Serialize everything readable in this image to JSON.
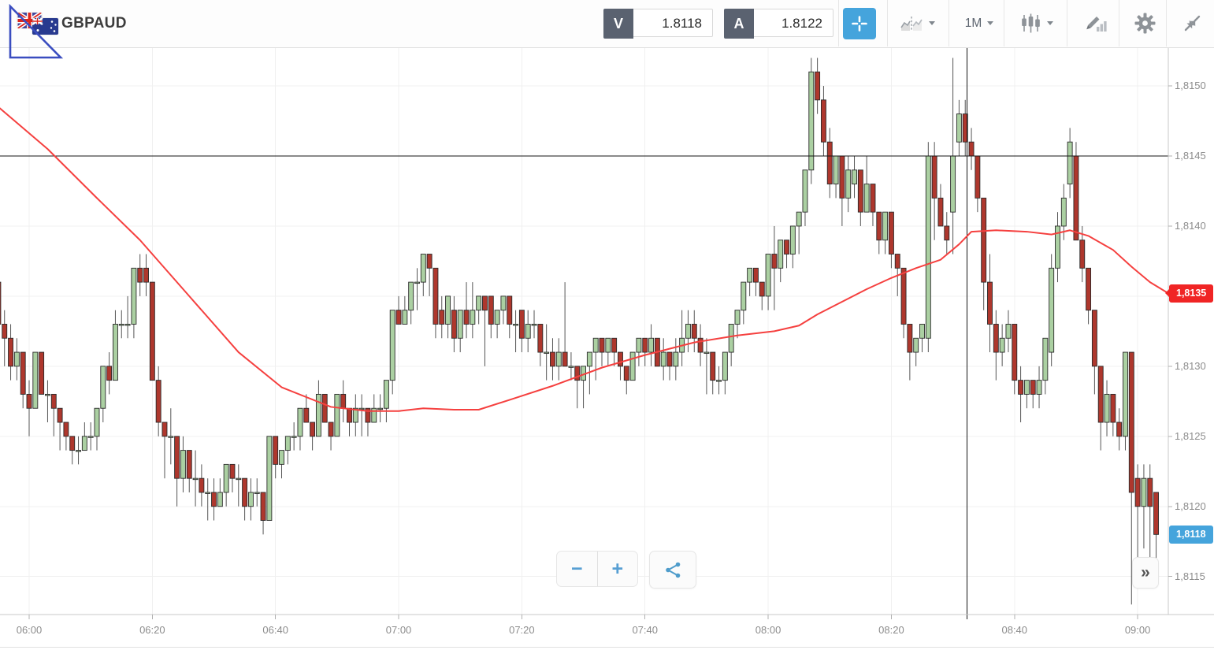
{
  "header": {
    "symbol": "GBPAUD",
    "flags": [
      "gb-flag-icon",
      "au-flag-icon"
    ],
    "sell": {
      "label": "V",
      "value": "1.8118"
    },
    "buy": {
      "label": "A",
      "value": "1.8122"
    },
    "timeframe": "1M",
    "tool_icons": [
      "crosshair-icon",
      "compare-chart-icon",
      "timeframe-dropdown",
      "candlestick-type-icon",
      "draw-indicator-icon",
      "settings-gear-icon",
      "collapse-icon"
    ]
  },
  "footer": {
    "zoom_out_label": "−",
    "zoom_in_label": "+",
    "share_icon": "share-icon",
    "collapse_axis_label": "»"
  },
  "colors": {
    "accent_blue": "#45a4dc",
    "badge_red": "#f02525",
    "candle_up": "#abd0a2",
    "candle_down": "#ae372d",
    "ma_line": "#f5403f",
    "annotation_black": "#151515",
    "drawing_blue": "#3a4dc0"
  },
  "chart_data": {
    "type": "candlestick",
    "title": "GBPAUD 1-minute candlestick chart",
    "interval_minutes": 1,
    "start_time": "05:55",
    "price_scale_note": "candle and sma prices are price*10000 (pips)",
    "ylim": [
      1.8112,
      1.8155
    ],
    "grid": true,
    "x_ticks": [
      {
        "label": "06:00",
        "minute": 0
      },
      {
        "label": "06:20",
        "minute": 20
      },
      {
        "label": "06:40",
        "minute": 40
      },
      {
        "label": "07:00",
        "minute": 60
      },
      {
        "label": "07:20",
        "minute": 80
      },
      {
        "label": "07:40",
        "minute": 100
      },
      {
        "label": "08:00",
        "minute": 120
      },
      {
        "label": "08:20",
        "minute": 140
      },
      {
        "label": "08:40",
        "minute": 160
      },
      {
        "label": "09:00",
        "minute": 180
      }
    ],
    "y_ticks": [
      {
        "label": "1,8150",
        "pips": 18150
      },
      {
        "label": "1,8145",
        "pips": 18145
      },
      {
        "label": "1,8140",
        "pips": 18140
      },
      {
        "label": "1,8135",
        "pips": 18135
      },
      {
        "label": "1,8130",
        "pips": 18130
      },
      {
        "label": "1,8125",
        "pips": 18125
      },
      {
        "label": "1,8120",
        "pips": 18120
      },
      {
        "label": "1,8115",
        "pips": 18115
      }
    ],
    "candles": [
      [
        18136,
        18137,
        18132,
        18133
      ],
      [
        18133,
        18134,
        18130,
        18132
      ],
      [
        18132,
        18133,
        18129,
        18130
      ],
      [
        18130,
        18132,
        18129,
        18131
      ],
      [
        18131,
        18131,
        18127,
        18128
      ],
      [
        18128,
        18129,
        18125,
        18127
      ],
      [
        18127,
        18131,
        18127,
        18131
      ],
      [
        18131,
        18131,
        18128,
        18128
      ],
      [
        18128,
        18129,
        18126,
        18128
      ],
      [
        18128,
        18128,
        18125,
        18127
      ],
      [
        18127,
        18127,
        18124,
        18126
      ],
      [
        18126,
        18126,
        18124,
        18125
      ],
      [
        18125,
        18125,
        18123,
        18124
      ],
      [
        18124,
        18125,
        18123,
        18124
      ],
      [
        18124,
        18126,
        18124,
        18125
      ],
      [
        18125,
        18126,
        18124,
        18125
      ],
      [
        18125,
        18127,
        18124,
        18127
      ],
      [
        18127,
        18130,
        18126,
        18130
      ],
      [
        18130,
        18131,
        18128,
        18129
      ],
      [
        18129,
        18134,
        18129,
        18133
      ],
      [
        18133,
        18134,
        18132,
        18133
      ],
      [
        18133,
        18135,
        18132,
        18133
      ],
      [
        18133,
        18137,
        18132,
        18137
      ],
      [
        18137,
        18138,
        18135,
        18136
      ],
      [
        18137,
        18138,
        18135,
        18136
      ],
      [
        18136,
        18136,
        18129,
        18129
      ],
      [
        18129,
        18130,
        18125,
        18126
      ],
      [
        18126,
        18126,
        18122,
        18125
      ],
      [
        18125,
        18127,
        18123,
        18125
      ],
      [
        18125,
        18125,
        18120,
        18122
      ],
      [
        18122,
        18125,
        18121,
        18124
      ],
      [
        18124,
        18124,
        18121,
        18122
      ],
      [
        18122,
        18124,
        18120,
        18122
      ],
      [
        18122,
        18123,
        18120,
        18121
      ],
      [
        18121,
        18122,
        18119,
        18121
      ],
      [
        18121,
        18122,
        18119,
        18120
      ],
      [
        18120,
        18122,
        18120,
        18121
      ],
      [
        18121,
        18123,
        18120,
        18123
      ],
      [
        18123,
        18123,
        18121,
        18122
      ],
      [
        18122,
        18123,
        18120,
        18122
      ],
      [
        18122,
        18122,
        18119,
        18120
      ],
      [
        18120,
        18122,
        18119,
        18121
      ],
      [
        18121,
        18122,
        18120,
        18121
      ],
      [
        18121,
        18121,
        18118,
        18119
      ],
      [
        18119,
        18125,
        18119,
        18125
      ],
      [
        18125,
        18125,
        18122,
        18123
      ],
      [
        18123,
        18124,
        18122,
        18124
      ],
      [
        18124,
        18125,
        18123,
        18125
      ],
      [
        18125,
        18126,
        18124,
        18125
      ],
      [
        18125,
        18127,
        18124,
        18127
      ],
      [
        18127,
        18128,
        18126,
        18126
      ],
      [
        18126,
        18126,
        18124,
        18125
      ],
      [
        18125,
        18129,
        18125,
        18128
      ],
      [
        18128,
        18128,
        18126,
        18126
      ],
      [
        18126,
        18126,
        18124,
        18125
      ],
      [
        18125,
        18128,
        18125,
        18128
      ],
      [
        18128,
        18129,
        18126,
        18127
      ],
      [
        18127,
        18127,
        18125,
        18126
      ],
      [
        18126,
        18128,
        18125,
        18127
      ],
      [
        18127,
        18128,
        18125,
        18127
      ],
      [
        18127,
        18127,
        18125,
        18126
      ],
      [
        18126,
        18128,
        18126,
        18127
      ],
      [
        18127,
        18128,
        18126,
        18127
      ],
      [
        18127,
        18129,
        18126,
        18129
      ],
      [
        18129,
        18134,
        18128,
        18134
      ],
      [
        18134,
        18135,
        18133,
        18133
      ],
      [
        18133,
        18135,
        18133,
        18134
      ],
      [
        18134,
        18136,
        18133,
        18136
      ],
      [
        18136,
        18137,
        18134,
        18136
      ],
      [
        18136,
        18138,
        18135,
        18138
      ],
      [
        18138,
        18138,
        18135,
        18137
      ],
      [
        18137,
        18137,
        18132,
        18133
      ],
      [
        18134,
        18135,
        18132,
        18133
      ],
      [
        18133,
        18135,
        18132,
        18135
      ],
      [
        18134,
        18135,
        18131,
        18132
      ],
      [
        18132,
        18134,
        18131,
        18134
      ],
      [
        18134,
        18136,
        18132,
        18133
      ],
      [
        18133,
        18136,
        18132,
        18134
      ],
      [
        18134,
        18135,
        18133,
        18135
      ],
      [
        18135,
        18135,
        18130,
        18134
      ],
      [
        18135,
        18135,
        18132,
        18133
      ],
      [
        18133,
        18134,
        18132,
        18134
      ],
      [
        18134,
        18135,
        18133,
        18135
      ],
      [
        18135,
        18135,
        18132,
        18133
      ],
      [
        18133,
        18134,
        18131,
        18133
      ],
      [
        18134,
        18134,
        18131,
        18132
      ],
      [
        18132,
        18134,
        18131,
        18133
      ],
      [
        18133,
        18134,
        18132,
        18133
      ],
      [
        18133,
        18133,
        18130,
        18131
      ],
      [
        18131,
        18133,
        18129,
        18131
      ],
      [
        18131,
        18132,
        18129,
        18130
      ],
      [
        18130,
        18132,
        18129,
        18131
      ],
      [
        18131,
        18136,
        18130,
        18130
      ],
      [
        18130,
        18131,
        18129,
        18130
      ],
      [
        18130,
        18130,
        18127,
        18129
      ],
      [
        18129,
        18130,
        18127,
        18130
      ],
      [
        18130,
        18131,
        18128,
        18131
      ],
      [
        18131,
        18132,
        18129,
        18132
      ],
      [
        18132,
        18132,
        18130,
        18131
      ],
      [
        18131,
        18132,
        18130,
        18132
      ],
      [
        18132,
        18132,
        18130,
        18131
      ],
      [
        18131,
        18131,
        18129,
        18130
      ],
      [
        18130,
        18130,
        18128,
        18129
      ],
      [
        18129,
        18131,
        18129,
        18131
      ],
      [
        18131,
        18132,
        18130,
        18132
      ],
      [
        18132,
        18132,
        18130,
        18131
      ],
      [
        18131,
        18133,
        18130,
        18132
      ],
      [
        18132,
        18132,
        18130,
        18130
      ],
      [
        18130,
        18132,
        18129,
        18131
      ],
      [
        18131,
        18131,
        18129,
        18130
      ],
      [
        18130,
        18132,
        18129,
        18131
      ],
      [
        18131,
        18134,
        18130,
        18132
      ],
      [
        18132,
        18134,
        18131,
        18133
      ],
      [
        18133,
        18134,
        18131,
        18132
      ],
      [
        18132,
        18133,
        18130,
        18131
      ],
      [
        18131,
        18132,
        18128,
        18131
      ],
      [
        18131,
        18131,
        18128,
        18129
      ],
      [
        18129,
        18130,
        18128,
        18129
      ],
      [
        18129,
        18131,
        18128,
        18131
      ],
      [
        18131,
        18133,
        18130,
        18133
      ],
      [
        18133,
        18134,
        18132,
        18134
      ],
      [
        18134,
        18136,
        18133,
        18136
      ],
      [
        18136,
        18137,
        18135,
        18137
      ],
      [
        18137,
        18137,
        18135,
        18136
      ],
      [
        18136,
        18136,
        18134,
        18135
      ],
      [
        18135,
        18138,
        18134,
        18138
      ],
      [
        18138,
        18140,
        18134,
        18137
      ],
      [
        18137,
        18139,
        18136,
        18139
      ],
      [
        18139,
        18139,
        18137,
        18138
      ],
      [
        18138,
        18140,
        18137,
        18140
      ],
      [
        18140,
        18141,
        18138,
        18141
      ],
      [
        18141,
        18144,
        18140,
        18144
      ],
      [
        18144,
        18152,
        18143,
        18151
      ],
      [
        18151,
        18152,
        18148,
        18149
      ],
      [
        18149,
        18150,
        18145,
        18146
      ],
      [
        18146,
        18147,
        18142,
        18143
      ],
      [
        18143,
        18145,
        18142,
        18145
      ],
      [
        18145,
        18145,
        18140,
        18142
      ],
      [
        18142,
        18145,
        18141,
        18144
      ],
      [
        18143,
        18145,
        18142,
        18144
      ],
      [
        18144,
        18144,
        18140,
        18141
      ],
      [
        18141,
        18145,
        18141,
        18143
      ],
      [
        18143,
        18143,
        18140,
        18141
      ],
      [
        18141,
        18141,
        18138,
        18139
      ],
      [
        18139,
        18141,
        18138,
        18141
      ],
      [
        18141,
        18141,
        18137,
        18138
      ],
      [
        18138,
        18138,
        18135,
        18137
      ],
      [
        18137,
        18137,
        18132,
        18133
      ],
      [
        18133,
        18133,
        18129,
        18131
      ],
      [
        18131,
        18132,
        18130,
        18132
      ],
      [
        18132,
        18133,
        18131,
        18133
      ],
      [
        18132,
        18146,
        18131,
        18145
      ],
      [
        18145,
        18146,
        18139,
        18142
      ],
      [
        18142,
        18143,
        18140,
        18140
      ],
      [
        18140,
        18141,
        18138,
        18139
      ],
      [
        18141,
        18152,
        18138,
        18145
      ],
      [
        18146,
        18149,
        18145,
        18148
      ],
      [
        18148,
        18149,
        18145,
        18146
      ],
      [
        18146,
        18147,
        18144,
        18145
      ],
      [
        18145,
        18145,
        18141,
        18142
      ],
      [
        18142,
        18142,
        18134,
        18136
      ],
      [
        18136,
        18138,
        18131,
        18133
      ],
      [
        18133,
        18134,
        18129,
        18131
      ],
      [
        18131,
        18133,
        18130,
        18132
      ],
      [
        18132,
        18134,
        18131,
        18133
      ],
      [
        18133,
        18133,
        18128,
        18129
      ],
      [
        18129,
        18130,
        18126,
        18128
      ],
      [
        18128,
        18129,
        18127,
        18129
      ],
      [
        18129,
        18129,
        18127,
        18128
      ],
      [
        18128,
        18130,
        18127,
        18129
      ],
      [
        18129,
        18132,
        18128,
        18132
      ],
      [
        18131,
        18138,
        18130,
        18137
      ],
      [
        18137,
        18141,
        18136,
        18140
      ],
      [
        18140,
        18143,
        18139,
        18142
      ],
      [
        18143,
        18147,
        18142,
        18146
      ],
      [
        18145,
        18146,
        18139,
        18139
      ],
      [
        18139,
        18140,
        18136,
        18137
      ],
      [
        18137,
        18137,
        18133,
        18134
      ],
      [
        18134,
        18134,
        18128,
        18130
      ],
      [
        18130,
        18130,
        18124,
        18126
      ],
      [
        18126,
        18129,
        18125,
        18128
      ],
      [
        18128,
        18128,
        18125,
        18126
      ],
      [
        18126,
        18127,
        18124,
        18125
      ],
      [
        18125,
        18131,
        18124,
        18131
      ],
      [
        18131,
        18131,
        18113,
        18121
      ],
      [
        18122,
        18123,
        18116,
        18120
      ],
      [
        18120,
        18123,
        18117,
        18122
      ],
      [
        18122,
        18123,
        18116,
        18120
      ],
      [
        18121,
        18121,
        18116,
        18118
      ]
    ],
    "sma": [
      [
        -5,
        18148.5
      ],
      [
        3,
        18145.5
      ],
      [
        11,
        18142
      ],
      [
        18,
        18139
      ],
      [
        26,
        18135
      ],
      [
        34,
        18131
      ],
      [
        41,
        18128.5
      ],
      [
        49,
        18127.1
      ],
      [
        55,
        18126.8
      ],
      [
        60,
        18126.8
      ],
      [
        64,
        18127
      ],
      [
        69,
        18126.9
      ],
      [
        73,
        18126.9
      ],
      [
        78,
        18127.6
      ],
      [
        85,
        18128.6
      ],
      [
        93,
        18129.9
      ],
      [
        100,
        18130.8
      ],
      [
        108,
        18131.7
      ],
      [
        115,
        18132.2
      ],
      [
        121,
        18132.5
      ],
      [
        125,
        18132.9
      ],
      [
        128,
        18133.7
      ],
      [
        132,
        18134.6
      ],
      [
        136,
        18135.5
      ],
      [
        140,
        18136.3
      ],
      [
        144,
        18137
      ],
      [
        148,
        18137.6
      ],
      [
        151,
        18138.7
      ],
      [
        153,
        18139.6
      ],
      [
        157,
        18139.7
      ],
      [
        162,
        18139.6
      ],
      [
        166,
        18139.4
      ],
      [
        169,
        18139.7
      ],
      [
        172,
        18139.3
      ],
      [
        176,
        18138.3
      ],
      [
        179,
        18137.1
      ],
      [
        182,
        18136
      ],
      [
        185,
        18135.2
      ]
    ],
    "annotations": {
      "hline_pips": 18145,
      "vline_minute": 152.3
    },
    "ma_badge": {
      "label": "1,8135",
      "pips": 18135.2
    },
    "last_price_badge": {
      "label": "1,8118",
      "pips": 18118
    }
  }
}
